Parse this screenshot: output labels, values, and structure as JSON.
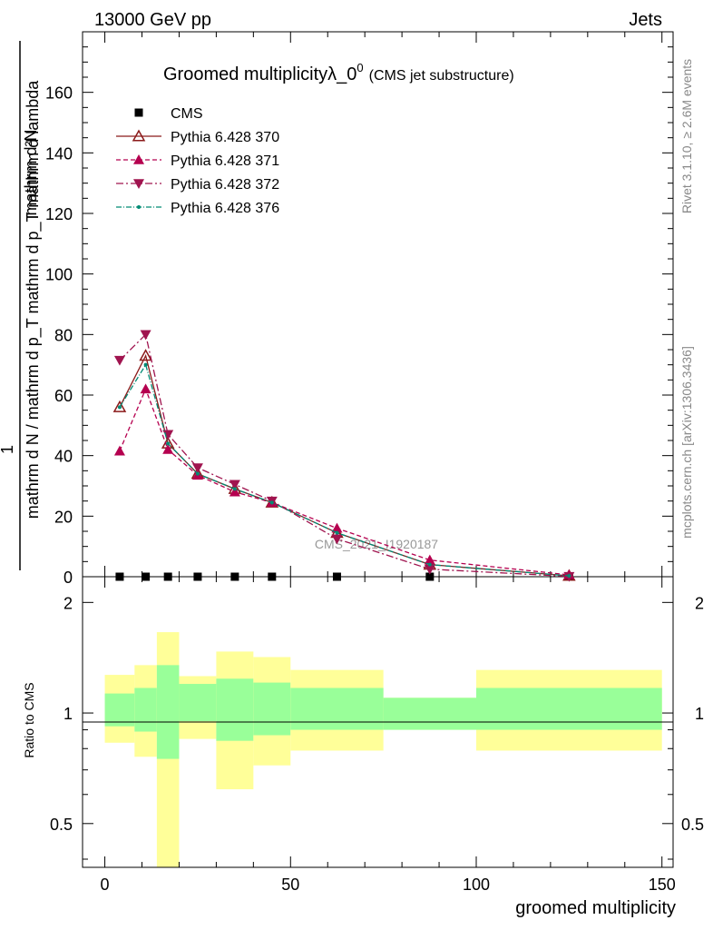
{
  "header": {
    "left": "13000 GeV pp",
    "right": "Jets"
  },
  "title": {
    "main": "Groomed multiplicityλ_0",
    "sup": "0",
    "sub": "(CMS jet substructure)"
  },
  "side": {
    "rivet": "Rivet 3.1.10, ≥ 2.6M events",
    "mcplots": "mcplots.cern.ch [arXiv:1306.3436]"
  },
  "watermark": "CMS_2021_I1920187",
  "axes": {
    "ylabel_num": "1",
    "ylabel_den": "mathrm d N / mathrm d p_T mathrm d p_T mathrm d lambda",
    "ylabel_top": "mathrm d²N",
    "ratio_ylabel": "Ratio to CMS",
    "xlabel": "groomed multiplicity"
  },
  "chart_data": {
    "type": "line",
    "xlim": [
      -6,
      153
    ],
    "ylim": [
      0,
      180
    ],
    "ratio_ylim": [
      0.38,
      2.35
    ],
    "x_ticks": [
      0,
      50,
      100,
      150
    ],
    "y_ticks": [
      0,
      20,
      40,
      60,
      80,
      100,
      120,
      140,
      160
    ],
    "ratio_ticks": [
      0.5,
      1,
      2
    ],
    "legend_position": "top-left",
    "series": [
      {
        "name": "CMS",
        "color": "#000000",
        "marker": "square",
        "x": [
          4,
          11,
          17,
          25,
          35,
          45,
          62.5,
          87.5,
          125
        ],
        "y": [
          0,
          0,
          0,
          0,
          0,
          0,
          0,
          0,
          0
        ]
      },
      {
        "name": "Pythia 6.428 370",
        "color": "#8b1a1a",
        "marker": "triangle-open",
        "dash": "",
        "x": [
          4,
          11,
          17,
          25,
          35,
          45,
          62.5,
          87.5,
          125
        ],
        "y": [
          56,
          73,
          44,
          34,
          29,
          24.5,
          14.5,
          4,
          0.3
        ]
      },
      {
        "name": "Pythia 6.428 371",
        "color": "#b5004f",
        "marker": "triangle-up",
        "dash": "5,3",
        "x": [
          4,
          11,
          17,
          25,
          35,
          45,
          62.5,
          87.5,
          125
        ],
        "y": [
          41.5,
          62,
          42,
          33.5,
          28,
          24.5,
          16,
          5.5,
          0.6
        ]
      },
      {
        "name": "Pythia 6.428 372",
        "color": "#a0144f",
        "marker": "triangle-down",
        "dash": "8,3,2,3",
        "x": [
          4,
          11,
          17,
          25,
          35,
          45,
          62.5,
          87.5,
          125
        ],
        "y": [
          71.5,
          80,
          47,
          36,
          30.5,
          25,
          12.5,
          2.5,
          0.1
        ]
      },
      {
        "name": "Pythia 6.428 376",
        "color": "#008b74",
        "marker": "dot",
        "dash": "6,2,1,2",
        "x": [
          4,
          11,
          17,
          25,
          35,
          45,
          62.5,
          87.5,
          125
        ],
        "y": [
          56,
          70,
          44,
          34,
          29,
          24.5,
          14.5,
          4,
          0.3
        ]
      }
    ],
    "ratio_bands": {
      "edges": [
        0,
        8,
        14,
        20,
        30,
        40,
        50,
        75,
        100,
        150
      ],
      "inner_low": [
        0.92,
        0.89,
        0.75,
        0.95,
        0.84,
        0.87,
        0.9,
        0.9,
        0.9
      ],
      "inner_high": [
        1.13,
        1.17,
        1.35,
        1.2,
        1.24,
        1.21,
        1.17,
        1.1,
        1.17
      ],
      "outer_low": [
        0.83,
        0.76,
        0.37,
        0.85,
        0.62,
        0.72,
        0.79,
        0.9,
        0.79
      ],
      "outer_high": [
        1.27,
        1.35,
        1.66,
        1.26,
        1.47,
        1.42,
        1.31,
        1.1,
        1.31
      ],
      "inner_color": "#99ff99",
      "outer_color": "#ffff99"
    }
  }
}
